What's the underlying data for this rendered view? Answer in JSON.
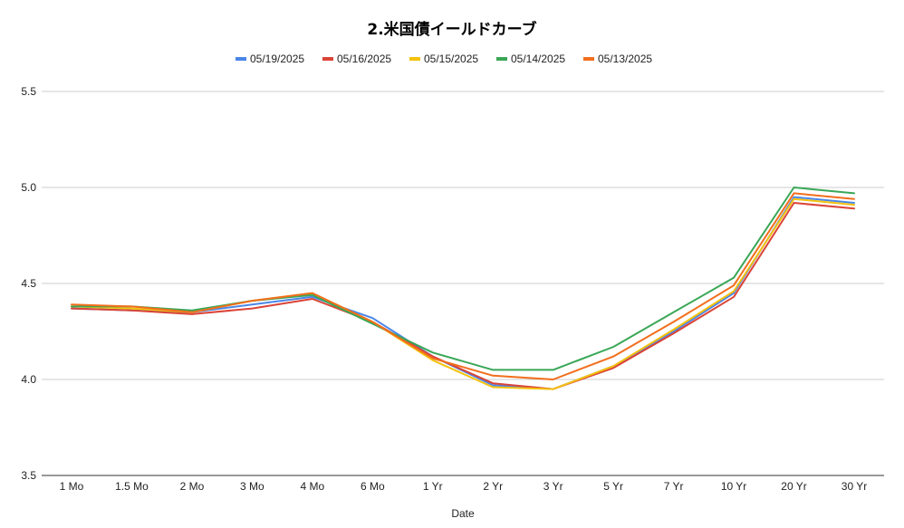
{
  "chart_data": {
    "type": "line",
    "title": "2.米国債イールドカーブ",
    "xlabel": "Date",
    "ylabel": "",
    "categories": [
      "1 Mo",
      "1.5 Mo",
      "2 Mo",
      "3 Mo",
      "4 Mo",
      "6 Mo",
      "1 Yr",
      "2 Yr",
      "3 Yr",
      "5 Yr",
      "7 Yr",
      "10 Yr",
      "20 Yr",
      "30 Yr"
    ],
    "ylim": [
      3.5,
      5.5
    ],
    "yticks": [
      "3.5",
      "4.0",
      "4.5",
      "5.0",
      "5.5"
    ],
    "ytick_values": [
      3.5,
      4.0,
      4.5,
      5.0,
      5.5
    ],
    "grid": true,
    "legend_position": "top-center",
    "series": [
      {
        "name": "05/19/2025",
        "color": "#4a86e8",
        "values": [
          4.37,
          4.36,
          4.35,
          4.39,
          4.43,
          4.32,
          4.12,
          3.97,
          3.95,
          4.07,
          4.25,
          4.45,
          4.95,
          4.92
        ]
      },
      {
        "name": "05/16/2025",
        "color": "#db4437",
        "values": [
          4.37,
          4.36,
          4.34,
          4.37,
          4.42,
          4.3,
          4.12,
          3.98,
          3.95,
          4.06,
          4.24,
          4.43,
          4.92,
          4.89
        ]
      },
      {
        "name": "05/15/2025",
        "color": "#f4c20d",
        "values": [
          4.38,
          4.37,
          4.35,
          4.41,
          4.45,
          4.3,
          4.1,
          3.96,
          3.95,
          4.07,
          4.26,
          4.46,
          4.94,
          4.91
        ]
      },
      {
        "name": "05/14/2025",
        "color": "#3aa757",
        "values": [
          4.38,
          4.38,
          4.36,
          4.41,
          4.44,
          4.29,
          4.14,
          4.05,
          4.05,
          4.17,
          4.35,
          4.53,
          5.0,
          4.97
        ]
      },
      {
        "name": "05/13/2025",
        "color": "#f26e1d",
        "values": [
          4.39,
          4.38,
          4.35,
          4.41,
          4.45,
          4.3,
          4.11,
          4.02,
          4.0,
          4.12,
          4.3,
          4.49,
          4.97,
          4.94
        ]
      }
    ]
  }
}
